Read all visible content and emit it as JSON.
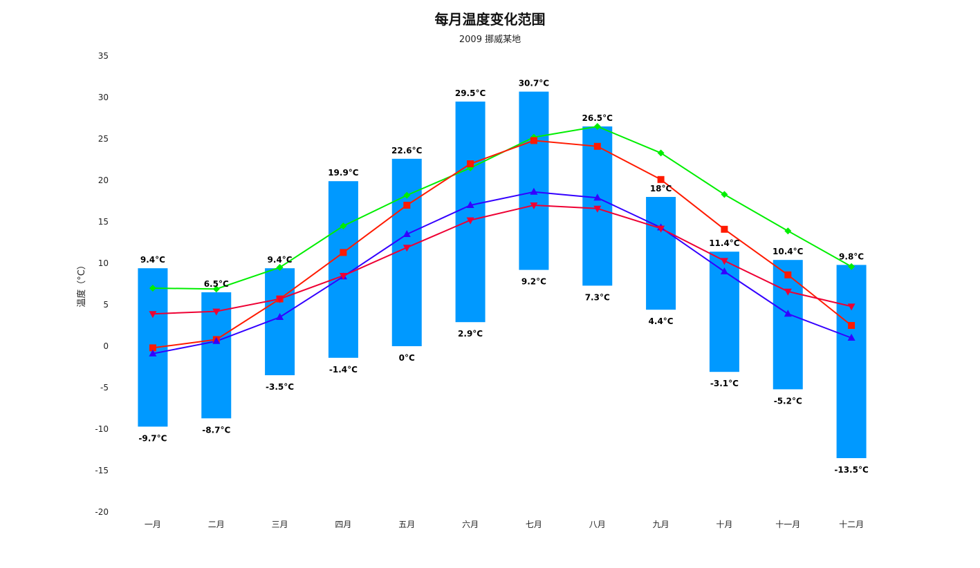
{
  "chart_data": {
    "type": "bar",
    "title": "每月温度变化范围",
    "subtitle": "2009 挪威某地",
    "ylabel": "温度（°C）",
    "xlabel": "",
    "ylim": [
      -20,
      35
    ],
    "yticks": [
      -20,
      -15,
      -10,
      -5,
      0,
      5,
      10,
      15,
      20,
      25,
      30,
      35
    ],
    "categories": [
      "一月",
      "二月",
      "三月",
      "四月",
      "五月",
      "六月",
      "七月",
      "八月",
      "九月",
      "十月",
      "十一月",
      "十二月"
    ],
    "range_series": {
      "color": "#0099ff",
      "low": [
        -9.7,
        -8.7,
        -3.5,
        -1.4,
        0,
        2.9,
        9.2,
        7.3,
        4.4,
        -3.1,
        -5.2,
        -13.5
      ],
      "high": [
        9.4,
        6.5,
        9.4,
        19.9,
        22.6,
        29.5,
        30.7,
        26.5,
        18,
        11.4,
        10.4,
        9.8
      ],
      "low_labels": [
        "-9.7°C",
        "-8.7°C",
        "-3.5°C",
        "-1.4°C",
        "0°C",
        "2.9°C",
        "9.2°C",
        "7.3°C",
        "4.4°C",
        "-3.1°C",
        "-5.2°C",
        "-13.5°C"
      ],
      "high_labels": [
        "9.4°C",
        "6.5°C",
        "9.4°C",
        "19.9°C",
        "22.6°C",
        "29.5°C",
        "30.7°C",
        "26.5°C",
        "18°C",
        "11.4°C",
        "10.4°C",
        "9.8°C"
      ]
    },
    "series": [
      {
        "color": "#00ee00",
        "marker": "diamond",
        "values": [
          7,
          6.9,
          9.5,
          14.5,
          18.2,
          21.5,
          25.2,
          26.5,
          23.3,
          18.3,
          13.9,
          9.6
        ]
      },
      {
        "color": "#ff1a00",
        "marker": "square",
        "values": [
          -0.2,
          0.8,
          5.7,
          11.3,
          17.0,
          22.0,
          24.8,
          24.1,
          20.1,
          14.1,
          8.6,
          2.5
        ]
      },
      {
        "color": "#3300ff",
        "marker": "triangle",
        "values": [
          -0.9,
          0.6,
          3.5,
          8.4,
          13.5,
          17.0,
          18.6,
          17.9,
          14.3,
          9.0,
          3.9,
          1.0
        ]
      },
      {
        "color": "#ee0033",
        "marker": "triangle-down",
        "values": [
          3.9,
          4.2,
          5.7,
          8.5,
          11.9,
          15.2,
          17.0,
          16.6,
          14.2,
          10.3,
          6.6,
          4.8
        ]
      }
    ],
    "grid": false,
    "legend": "none"
  }
}
